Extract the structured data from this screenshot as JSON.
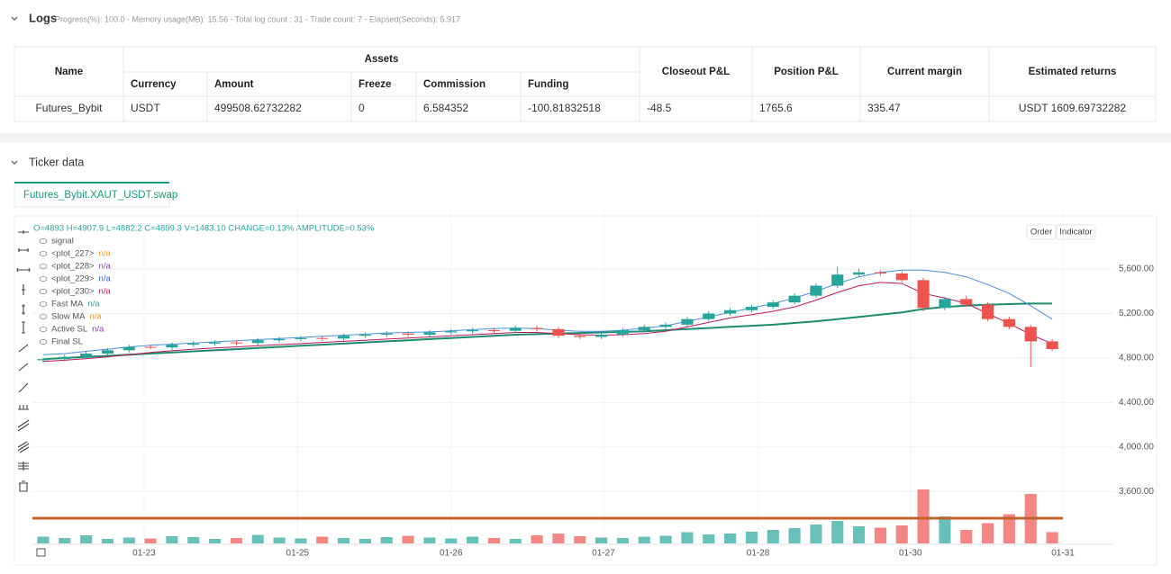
{
  "logs": {
    "title": "Logs",
    "stats": "Progress(%): 100.0 - Memory usage(MB): 15.56 - Total log count : 31 - Trade count: 7 - Elapsed(Seconds): 5.917",
    "table": {
      "header_top": [
        "Name",
        "Assets",
        "Closeout P&L",
        "Position P&L",
        "Current margin",
        "Estimated returns"
      ],
      "header_sub": [
        "Currency",
        "Amount",
        "Freeze",
        "Commission",
        "Funding"
      ],
      "rows": [
        [
          "Futures_Bybit",
          "USDT",
          "499508.62732282",
          "0",
          "6.584352",
          "-100.81832518",
          "-48.5",
          "1765.6",
          "335.47",
          "USDT 1609.69732282"
        ]
      ]
    }
  },
  "ticker": {
    "title": "Ticker data",
    "tab": "Futures_Bybit.XAUT_USDT.swap",
    "buttons": [
      "Order",
      "Indicator"
    ],
    "ohlc": "O=4893 H=4907.9 L=4882.2 C=4899.3 V=1483.10 CHANGE=0.13% AMPLITUDE=0.53%",
    "legend": [
      {
        "name": "signal"
      },
      {
        "name": "<plot_227>",
        "value": "n/a",
        "color": "#f39c12"
      },
      {
        "name": "<plot_228>",
        "value": "n/a",
        "color": "#8e44ad"
      },
      {
        "name": "<plot_229>",
        "value": "n/a",
        "color": "#2962ff"
      },
      {
        "name": "<plot_230>",
        "value": "n/a",
        "color": "#d81b60"
      },
      {
        "name": "Fast MA",
        "value": "n/a",
        "color": "#26a69a"
      },
      {
        "name": "Slow MA",
        "value": "n/a",
        "color": "#f39c12"
      },
      {
        "name": "Active SL",
        "value": "n/a",
        "color": "#8e44ad"
      },
      {
        "name": "Final SL"
      }
    ]
  },
  "chart_data": {
    "type": "candlestick",
    "xlim": [
      0,
      48
    ],
    "xticks": [
      {
        "value": 5.2,
        "label": "01-23"
      },
      {
        "value": 12.35,
        "label": "01-25"
      },
      {
        "value": 19.5,
        "label": "01-26"
      },
      {
        "value": 26.6,
        "label": "01-27"
      },
      {
        "value": 33.8,
        "label": "01-28"
      },
      {
        "value": 40.9,
        "label": "01-30"
      },
      {
        "value": 48,
        "label": "01-31"
      }
    ],
    "ylim": [
      3150,
      6150
    ],
    "yticks": [
      {
        "value": 3600,
        "label": "3,600.00"
      },
      {
        "value": 4000,
        "label": "4,000.00"
      },
      {
        "value": 4400,
        "label": "4,400.00"
      },
      {
        "value": 4800,
        "label": "4,800.00"
      },
      {
        "value": 5200,
        "label": "5,200.00"
      },
      {
        "value": 5600,
        "label": "5,600.00"
      }
    ],
    "grid": true,
    "up_color": "#26a69a",
    "down_color": "#ef5350",
    "candles": [
      [
        4780,
        4800,
        4760,
        4790
      ],
      [
        4790,
        4830,
        4770,
        4810
      ],
      [
        4810,
        4860,
        4790,
        4840
      ],
      [
        4840,
        4890,
        4820,
        4870
      ],
      [
        4870,
        4920,
        4850,
        4900
      ],
      [
        4900,
        4920,
        4880,
        4895
      ],
      [
        4895,
        4940,
        4875,
        4920
      ],
      [
        4920,
        4950,
        4900,
        4930
      ],
      [
        4930,
        4960,
        4910,
        4940
      ],
      [
        4940,
        4960,
        4915,
        4935
      ],
      [
        4935,
        4980,
        4915,
        4960
      ],
      [
        4960,
        4990,
        4940,
        4970
      ],
      [
        4970,
        5000,
        4950,
        4980
      ],
      [
        4980,
        5000,
        4955,
        4975
      ],
      [
        4975,
        5020,
        4955,
        5000
      ],
      [
        5000,
        5030,
        4980,
        5010
      ],
      [
        5010,
        5040,
        4990,
        5020
      ],
      [
        5020,
        5040,
        4990,
        5010
      ],
      [
        5010,
        5050,
        4990,
        5030
      ],
      [
        5030,
        5060,
        5010,
        5040
      ],
      [
        5040,
        5070,
        5020,
        5050
      ],
      [
        5050,
        5070,
        5025,
        5045
      ],
      [
        5045,
        5090,
        5025,
        5070
      ],
      [
        5070,
        5090,
        5040,
        5060
      ],
      [
        5060,
        5080,
        4980,
        5000
      ],
      [
        5000,
        5020,
        4970,
        4990
      ],
      [
        4990,
        5030,
        4970,
        5010
      ],
      [
        5010,
        5070,
        4990,
        5050
      ],
      [
        5050,
        5100,
        5030,
        5080
      ],
      [
        5080,
        5120,
        5060,
        5100
      ],
      [
        5100,
        5170,
        5080,
        5150
      ],
      [
        5150,
        5220,
        5130,
        5200
      ],
      [
        5200,
        5250,
        5180,
        5230
      ],
      [
        5230,
        5280,
        5210,
        5260
      ],
      [
        5260,
        5320,
        5240,
        5300
      ],
      [
        5300,
        5380,
        5280,
        5360
      ],
      [
        5360,
        5470,
        5340,
        5450
      ],
      [
        5450,
        5620,
        5430,
        5550
      ],
      [
        5550,
        5600,
        5530,
        5570
      ],
      [
        5570,
        5590,
        5540,
        5560
      ],
      [
        5560,
        5580,
        5480,
        5500
      ],
      [
        5500,
        5520,
        5220,
        5250
      ],
      [
        5250,
        5350,
        5230,
        5330
      ],
      [
        5330,
        5360,
        5260,
        5280
      ],
      [
        5280,
        5300,
        5130,
        5150
      ],
      [
        5150,
        5170,
        5060,
        5080
      ],
      [
        5080,
        5100,
        4720,
        4950
      ],
      [
        4950,
        4970,
        4860,
        4880
      ]
    ],
    "volume": [
      1500,
      1200,
      1800,
      1000,
      1300,
      1100,
      1600,
      1400,
      1000,
      1200,
      1900,
      1300,
      1100,
      1500,
      1200,
      1000,
      1400,
      1700,
      1300,
      1100,
      1500,
      1200,
      1000,
      1800,
      2200,
      1600,
      1300,
      1200,
      1500,
      1700,
      2500,
      2000,
      2200,
      2600,
      3000,
      3400,
      4200,
      5000,
      3800,
      3500,
      4000,
      12000,
      6000,
      3000,
      4500,
      6500,
      11000,
      2500
    ],
    "volume_lim": [
      0,
      30000
    ],
    "lines": [
      {
        "color": "#1e8c6e",
        "width": 2,
        "values": [
          4790,
          4800,
          4810,
          4820,
          4830,
          4840,
          4850,
          4860,
          4870,
          4880,
          4890,
          4900,
          4910,
          4920,
          4930,
          4940,
          4950,
          4960,
          4970,
          4980,
          4990,
          5000,
          5010,
          5015,
          5020,
          5025,
          5030,
          5035,
          5040,
          5050,
          5060,
          5070,
          5080,
          5090,
          5100,
          5115,
          5130,
          5150,
          5170,
          5190,
          5210,
          5240,
          5260,
          5270,
          5280,
          5285,
          5290,
          5290
        ]
      },
      {
        "color": "#4a90e2",
        "width": 1,
        "values": [
          4830,
          4840,
          4860,
          4880,
          4900,
          4915,
          4925,
          4935,
          4945,
          4955,
          4965,
          4975,
          4985,
          4995,
          5005,
          5015,
          5025,
          5030,
          5035,
          5045,
          5055,
          5065,
          5070,
          5065,
          5050,
          5040,
          5040,
          5050,
          5070,
          5090,
          5130,
          5170,
          5210,
          5250,
          5290,
          5340,
          5400,
          5470,
          5530,
          5570,
          5590,
          5590,
          5570,
          5530,
          5460,
          5380,
          5270,
          5150
        ]
      },
      {
        "color": "#c2185b",
        "width": 1,
        "values": [
          4770,
          4780,
          4795,
          4810,
          4830,
          4850,
          4865,
          4880,
          4890,
          4900,
          4910,
          4920,
          4930,
          4940,
          4950,
          4960,
          4970,
          4980,
          4990,
          5000,
          5010,
          5020,
          5030,
          5030,
          5020,
          5010,
          5005,
          5010,
          5020,
          5040,
          5080,
          5120,
          5160,
          5190,
          5220,
          5260,
          5320,
          5390,
          5450,
          5480,
          5470,
          5380,
          5340,
          5290,
          5200,
          5110,
          5010,
          4930
        ]
      }
    ],
    "level_line": {
      "value": 3360,
      "color": "#c0632f"
    }
  }
}
